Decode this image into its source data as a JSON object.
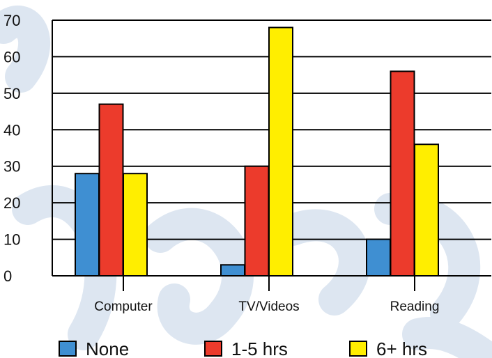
{
  "chart_data": {
    "type": "bar",
    "categories": [
      "Computer",
      "TV/Videos",
      "Reading"
    ],
    "series": [
      {
        "name": "None",
        "values": [
          28,
          3,
          10
        ],
        "color": "#3f8fd2"
      },
      {
        "name": "1-5 hrs",
        "values": [
          47,
          30,
          56
        ],
        "color": "#ec3b2c"
      },
      {
        "name": "6+ hrs",
        "values": [
          28,
          68,
          36
        ],
        "color": "#ffee00"
      }
    ],
    "yticks": [
      "0",
      "10",
      "20",
      "30",
      "40",
      "50",
      "60",
      "70"
    ],
    "ylim": [
      0,
      70
    ],
    "title": "",
    "xlabel": "",
    "ylabel": "",
    "grid": true,
    "legend_position": "bottom"
  }
}
